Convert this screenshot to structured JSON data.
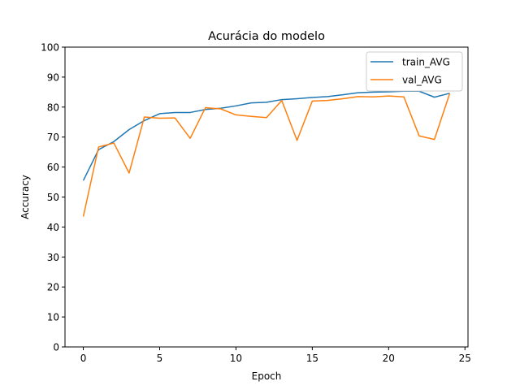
{
  "chart_data": {
    "type": "line",
    "title": "Acurácia do modelo",
    "xlabel": "Epoch",
    "ylabel": "Accuracy",
    "xlim": [
      -1.2,
      25.2
    ],
    "ylim": [
      0,
      100
    ],
    "xticks": [
      0,
      5,
      10,
      15,
      20,
      25
    ],
    "yticks": [
      0,
      10,
      20,
      30,
      40,
      50,
      60,
      70,
      80,
      90,
      100
    ],
    "grid": false,
    "legend": "top-right",
    "x": [
      0,
      1,
      2,
      3,
      4,
      5,
      6,
      7,
      8,
      9,
      10,
      11,
      12,
      13,
      14,
      15,
      16,
      17,
      18,
      19,
      20,
      21,
      22,
      23,
      24
    ],
    "series": [
      {
        "name": "train_AVG",
        "color": "#1f77b4",
        "values": [
          55.5,
          65.8,
          68.5,
          72.5,
          75.5,
          77.8,
          78.2,
          78.2,
          79.2,
          79.6,
          80.4,
          81.4,
          81.6,
          82.5,
          82.8,
          83.2,
          83.5,
          84.1,
          84.8,
          85.0,
          85.1,
          85.3,
          85.3,
          83.3,
          84.6
        ]
      },
      {
        "name": "val_AVG",
        "color": "#ff7f0e",
        "values": [
          43.5,
          66.7,
          68.0,
          58.0,
          76.7,
          76.3,
          76.4,
          69.6,
          79.8,
          79.4,
          77.4,
          76.9,
          76.5,
          82.2,
          68.9,
          82.0,
          82.2,
          82.8,
          83.5,
          83.4,
          83.7,
          83.4,
          70.4,
          69.2,
          84.5
        ]
      }
    ]
  }
}
